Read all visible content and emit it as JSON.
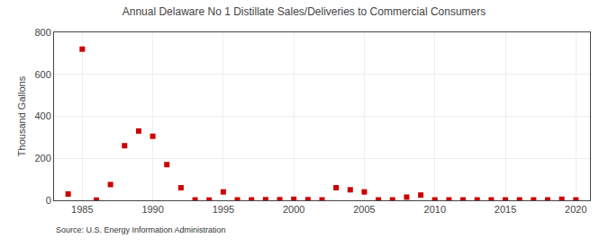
{
  "chart_data": {
    "type": "scatter",
    "title": "Annual Delaware No 1 Distillate Sales/Deliveries to Commercial Consumers",
    "ylabel": "Thousand Gallons",
    "source": "Source: U.S. Energy Information Administration",
    "x": [
      1984,
      1985,
      1986,
      1987,
      1988,
      1989,
      1990,
      1991,
      1992,
      1993,
      1994,
      1995,
      1996,
      1997,
      1998,
      1999,
      2000,
      2001,
      2002,
      2003,
      2004,
      2005,
      2006,
      2007,
      2008,
      2009,
      2010,
      2011,
      2012,
      2013,
      2014,
      2015,
      2016,
      2017,
      2018,
      2019,
      2020
    ],
    "values": [
      30,
      720,
      1,
      75,
      260,
      330,
      305,
      170,
      60,
      2,
      1,
      40,
      2,
      2,
      3,
      3,
      5,
      3,
      2,
      60,
      50,
      40,
      2,
      2,
      15,
      25,
      2,
      2,
      2,
      2,
      2,
      2,
      2,
      2,
      2,
      5,
      2
    ],
    "color": "#cc0000",
    "marker": "square",
    "xlim": [
      1983,
      2021
    ],
    "ylim": [
      0,
      800
    ],
    "xticks": [
      1985,
      1990,
      1995,
      2000,
      2005,
      2010,
      2015,
      2020
    ],
    "yticks": [
      0,
      200,
      400,
      600,
      800
    ],
    "grid": true
  }
}
